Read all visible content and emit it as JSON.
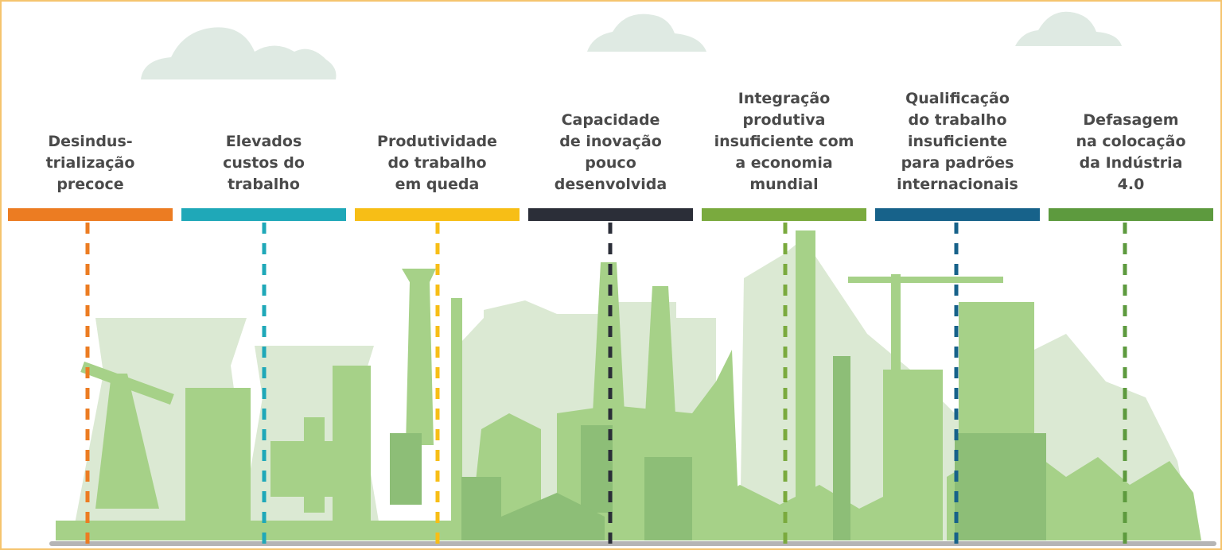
{
  "columns": [
    {
      "lines": [
        "Desindus-",
        "trialização",
        "precoce"
      ]
    },
    {
      "lines": [
        "Elevados",
        "custos do",
        "trabalho"
      ]
    },
    {
      "lines": [
        "Produtividade",
        "do trabalho",
        "em queda"
      ]
    },
    {
      "lines": [
        "Capacidade",
        "de inovação",
        "pouco",
        "desenvolvida"
      ]
    },
    {
      "lines": [
        "Integração",
        "produtiva",
        "insuficiente com",
        "a economia",
        "mundial"
      ]
    },
    {
      "lines": [
        "Qualificação",
        "do trabalho",
        "insuficiente",
        "para padrões",
        "internacionais"
      ]
    },
    {
      "lines": [
        "Defasagem",
        "na colocação",
        "da Indústria",
        "4.0"
      ]
    }
  ]
}
